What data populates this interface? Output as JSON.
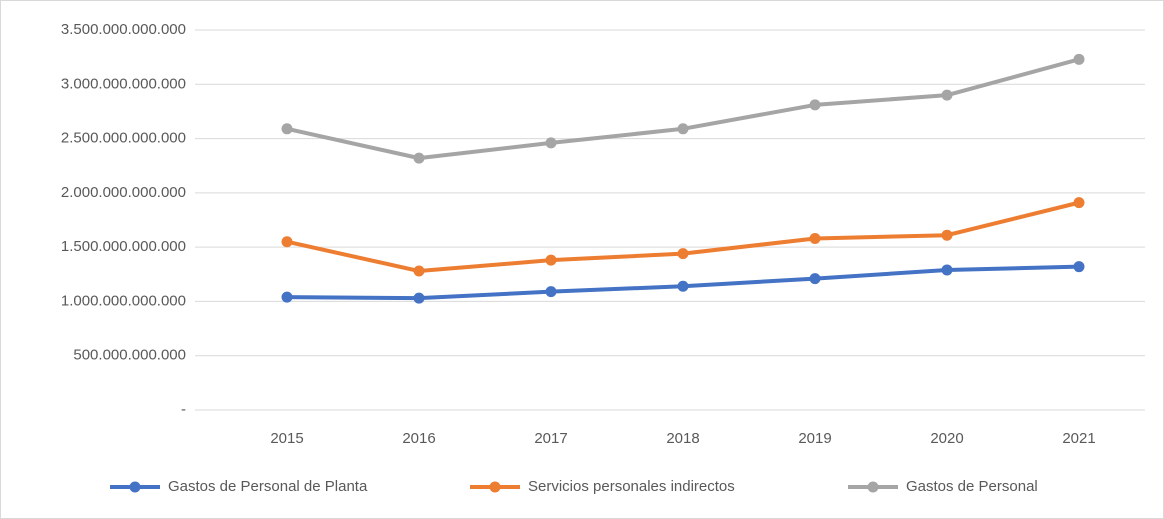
{
  "chart_data": {
    "type": "line",
    "categories": [
      "2015",
      "2016",
      "2017",
      "2018",
      "2019",
      "2020",
      "2021"
    ],
    "series": [
      {
        "name": "Gastos de Personal de Planta",
        "color": "#4472c4",
        "values": [
          1040000000000,
          1030000000000,
          1090000000000,
          1140000000000,
          1210000000000,
          1290000000000,
          1320000000000
        ]
      },
      {
        "name": "Servicios personales indirectos",
        "color": "#ed7d31",
        "values": [
          1550000000000,
          1280000000000,
          1380000000000,
          1440000000000,
          1580000000000,
          1610000000000,
          1910000000000
        ]
      },
      {
        "name": "Gastos de Personal",
        "color": "#a5a5a5",
        "values": [
          2590000000000,
          2320000000000,
          2460000000000,
          2590000000000,
          2810000000000,
          2900000000000,
          3230000000000
        ]
      }
    ],
    "ylim": [
      0,
      3500000000000
    ],
    "yticks": [
      {
        "value": 0,
        "label": "-"
      },
      {
        "value": 500000000000,
        "label": "500.000.000.000"
      },
      {
        "value": 1000000000000,
        "label": "1.000.000.000.000"
      },
      {
        "value": 1500000000000,
        "label": "1.500.000.000.000"
      },
      {
        "value": 2000000000000,
        "label": "2.000.000.000.000"
      },
      {
        "value": 2500000000000,
        "label": "2.500.000.000.000"
      },
      {
        "value": 3000000000000,
        "label": "3.000.000.000.000"
      },
      {
        "value": 3500000000000,
        "label": "3.500.000.000.000"
      }
    ],
    "grid": true,
    "legend": "bottom"
  }
}
